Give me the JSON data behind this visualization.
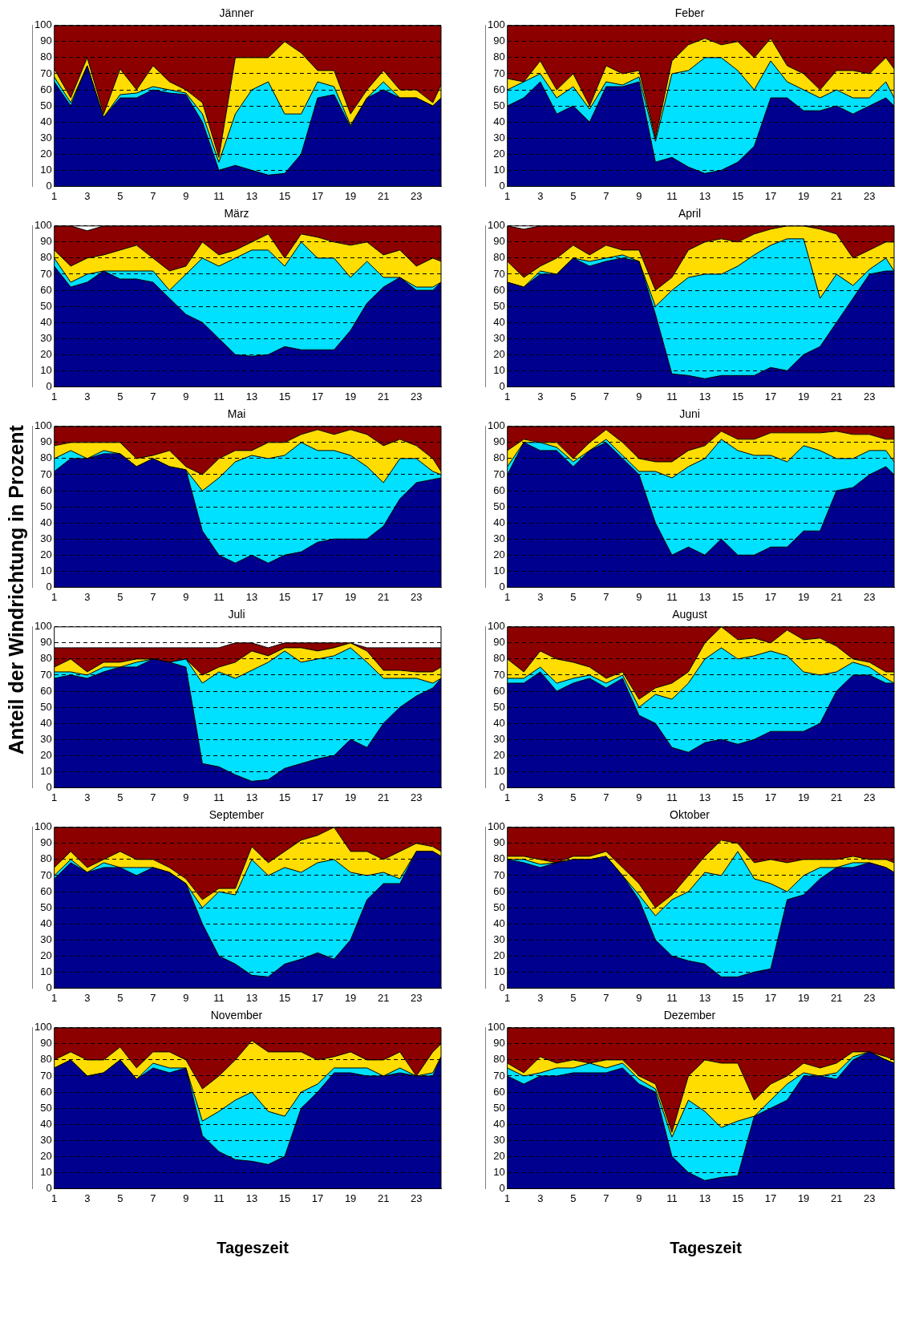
{
  "chart_data": [
    {
      "type": "area",
      "title": "Jänner",
      "stacked": true,
      "grid": "y",
      "xlim": [
        1,
        24.5
      ],
      "ylim": [
        0,
        100
      ],
      "xticks": [
        1,
        3,
        5,
        7,
        9,
        11,
        13,
        15,
        17,
        19,
        21,
        23
      ],
      "yticks": [
        0,
        10,
        20,
        30,
        40,
        50,
        60,
        70,
        80,
        90,
        100
      ],
      "x": [
        1,
        2,
        3,
        4,
        5,
        6,
        7,
        8,
        9,
        10,
        11,
        12,
        13,
        14,
        15,
        16,
        17,
        18,
        19,
        20,
        21,
        22,
        23,
        24,
        24.5
      ],
      "series": [
        {
          "color": "#00008f",
          "values": [
            65,
            50,
            75,
            43,
            55,
            55,
            60,
            58,
            57,
            40,
            10,
            13,
            10,
            7,
            8,
            20,
            55,
            57,
            37,
            55,
            60,
            55,
            55,
            50,
            55
          ]
        },
        {
          "color": "#00e0ff",
          "values": [
            3,
            2,
            0,
            0,
            2,
            3,
            2,
            2,
            1,
            5,
            5,
            32,
            50,
            58,
            37,
            25,
            10,
            5,
            1,
            0,
            5,
            0,
            0,
            0,
            0
          ]
        },
        {
          "color": "#ffdd00",
          "values": [
            5,
            3,
            5,
            2,
            16,
            2,
            13,
            5,
            2,
            7,
            3,
            35,
            20,
            15,
            45,
            38,
            7,
            10,
            7,
            5,
            7,
            5,
            5,
            2,
            8
          ]
        },
        {
          "color": "#8c0000",
          "values": [
            27,
            45,
            20,
            55,
            27,
            40,
            25,
            35,
            40,
            48,
            82,
            20,
            20,
            20,
            10,
            17,
            28,
            28,
            55,
            40,
            28,
            40,
            40,
            48,
            37
          ]
        }
      ]
    },
    {
      "type": "area",
      "title": "Feber",
      "stacked": true,
      "grid": "y",
      "xlim": [
        1,
        24.5
      ],
      "ylim": [
        0,
        100
      ],
      "xticks": [
        1,
        3,
        5,
        7,
        9,
        11,
        13,
        15,
        17,
        19,
        21,
        23
      ],
      "yticks": [
        0,
        10,
        20,
        30,
        40,
        50,
        60,
        70,
        80,
        90,
        100
      ],
      "x": [
        1,
        2,
        3,
        4,
        5,
        6,
        7,
        8,
        9,
        10,
        11,
        12,
        13,
        14,
        15,
        16,
        17,
        18,
        19,
        20,
        21,
        22,
        23,
        24,
        24.5
      ],
      "series": [
        {
          "color": "#00008f",
          "values": [
            50,
            55,
            65,
            45,
            50,
            40,
            62,
            62,
            65,
            15,
            18,
            12,
            8,
            10,
            15,
            25,
            55,
            55,
            47,
            47,
            50,
            45,
            50,
            55,
            50
          ]
        },
        {
          "color": "#00e0ff",
          "values": [
            10,
            10,
            5,
            10,
            12,
            8,
            3,
            1,
            3,
            13,
            52,
            60,
            72,
            70,
            57,
            35,
            23,
            10,
            13,
            8,
            10,
            10,
            5,
            10,
            5
          ]
        },
        {
          "color": "#ffdd00",
          "values": [
            7,
            0,
            8,
            5,
            8,
            2,
            10,
            7,
            4,
            2,
            8,
            16,
            12,
            8,
            18,
            20,
            14,
            10,
            10,
            5,
            12,
            17,
            15,
            15,
            18
          ]
        },
        {
          "color": "#8c0000",
          "values": [
            33,
            35,
            22,
            40,
            30,
            50,
            25,
            30,
            28,
            70,
            22,
            12,
            8,
            12,
            10,
            20,
            8,
            25,
            30,
            40,
            28,
            28,
            30,
            20,
            27
          ]
        }
      ]
    },
    {
      "type": "area",
      "title": "März",
      "stacked": true,
      "grid": "y",
      "xlim": [
        1,
        24.5
      ],
      "ylim": [
        0,
        100
      ],
      "xticks": [
        1,
        3,
        5,
        7,
        9,
        11,
        13,
        15,
        17,
        19,
        21,
        23
      ],
      "yticks": [
        0,
        10,
        20,
        30,
        40,
        50,
        60,
        70,
        80,
        90,
        100
      ],
      "x": [
        1,
        2,
        3,
        4,
        5,
        6,
        7,
        8,
        9,
        10,
        11,
        12,
        13,
        14,
        15,
        16,
        17,
        18,
        19,
        20,
        21,
        22,
        23,
        24,
        24.5
      ],
      "series": [
        {
          "color": "#00008f",
          "values": [
            75,
            62,
            65,
            72,
            67,
            67,
            65,
            55,
            45,
            40,
            30,
            20,
            19,
            20,
            25,
            23,
            23,
            23,
            35,
            52,
            62,
            68,
            60,
            60,
            65
          ]
        },
        {
          "color": "#00e0ff",
          "values": [
            5,
            3,
            5,
            0,
            5,
            5,
            7,
            5,
            25,
            40,
            45,
            60,
            66,
            65,
            50,
            67,
            57,
            57,
            33,
            26,
            6,
            0,
            2,
            2,
            0
          ]
        },
        {
          "color": "#ffdd00",
          "values": [
            5,
            10,
            10,
            10,
            13,
            16,
            8,
            12,
            5,
            10,
            7,
            5,
            5,
            10,
            5,
            5,
            13,
            10,
            20,
            12,
            14,
            17,
            13,
            18,
            13
          ]
        },
        {
          "color": "#8c0000",
          "values": [
            15,
            25,
            17,
            18,
            15,
            12,
            20,
            28,
            25,
            10,
            18,
            15,
            10,
            5,
            20,
            5,
            7,
            10,
            12,
            10,
            18,
            15,
            25,
            20,
            22
          ]
        }
      ]
    },
    {
      "type": "area",
      "title": "April",
      "stacked": true,
      "grid": "y",
      "xlim": [
        1,
        24.5
      ],
      "ylim": [
        0,
        100
      ],
      "xticks": [
        1,
        3,
        5,
        7,
        9,
        11,
        13,
        15,
        17,
        19,
        21,
        23
      ],
      "yticks": [
        0,
        10,
        20,
        30,
        40,
        50,
        60,
        70,
        80,
        90,
        100
      ],
      "x": [
        1,
        2,
        3,
        4,
        5,
        6,
        7,
        8,
        9,
        10,
        11,
        12,
        13,
        14,
        15,
        16,
        17,
        18,
        19,
        20,
        21,
        22,
        23,
        24,
        24.5
      ],
      "series": [
        {
          "color": "#00008f",
          "values": [
            65,
            62,
            70,
            70,
            80,
            75,
            78,
            80,
            78,
            45,
            8,
            7,
            5,
            7,
            7,
            7,
            12,
            10,
            20,
            25,
            40,
            55,
            70,
            72,
            72
          ]
        },
        {
          "color": "#00e0ff",
          "values": [
            0,
            0,
            2,
            0,
            0,
            3,
            2,
            2,
            0,
            5,
            52,
            61,
            65,
            63,
            68,
            75,
            76,
            82,
            72,
            30,
            30,
            8,
            3,
            8,
            0
          ]
        },
        {
          "color": "#ffdd00",
          "values": [
            13,
            6,
            3,
            10,
            8,
            4,
            8,
            3,
            7,
            10,
            8,
            17,
            20,
            22,
            15,
            13,
            10,
            8,
            8,
            43,
            25,
            17,
            12,
            10,
            18
          ]
        },
        {
          "color": "#8c0000",
          "values": [
            22,
            30,
            25,
            20,
            12,
            18,
            12,
            15,
            15,
            40,
            32,
            15,
            10,
            8,
            10,
            5,
            2,
            0,
            0,
            2,
            5,
            20,
            15,
            10,
            10
          ]
        }
      ]
    },
    {
      "type": "area",
      "title": "Mai",
      "ylabel": "Anteil der Windrichtung in Prozent",
      "stacked": true,
      "grid": "y",
      "xlim": [
        1,
        24.5
      ],
      "ylim": [
        0,
        100
      ],
      "xticks": [
        1,
        3,
        5,
        7,
        9,
        11,
        13,
        15,
        17,
        19,
        21,
        23
      ],
      "yticks": [
        0,
        10,
        20,
        30,
        40,
        50,
        60,
        70,
        80,
        90,
        100
      ],
      "x": [
        1,
        2,
        3,
        4,
        5,
        6,
        7,
        8,
        9,
        10,
        11,
        12,
        13,
        14,
        15,
        16,
        17,
        18,
        19,
        20,
        21,
        22,
        23,
        24,
        24.5
      ],
      "series": [
        {
          "color": "#00008f",
          "values": [
            72,
            80,
            80,
            83,
            83,
            75,
            80,
            75,
            73,
            35,
            20,
            15,
            20,
            15,
            20,
            22,
            28,
            30,
            30,
            30,
            38,
            55,
            65,
            67,
            68
          ]
        },
        {
          "color": "#00e0ff",
          "values": [
            8,
            5,
            0,
            2,
            0,
            0,
            0,
            0,
            0,
            25,
            48,
            63,
            62,
            65,
            62,
            68,
            57,
            55,
            52,
            45,
            27,
            25,
            15,
            5,
            2
          ]
        },
        {
          "color": "#ffdd00",
          "values": [
            8,
            5,
            10,
            5,
            7,
            5,
            2,
            10,
            2,
            10,
            12,
            7,
            3,
            10,
            8,
            5,
            13,
            10,
            16,
            20,
            23,
            12,
            8,
            8,
            2
          ]
        },
        {
          "color": "#8c0000",
          "values": [
            12,
            10,
            10,
            10,
            10,
            20,
            18,
            15,
            25,
            30,
            20,
            15,
            15,
            10,
            10,
            5,
            2,
            5,
            2,
            5,
            12,
            8,
            12,
            20,
            28
          ]
        }
      ]
    },
    {
      "type": "area",
      "title": "Juni",
      "stacked": true,
      "grid": "y",
      "xlim": [
        1,
        24.5
      ],
      "ylim": [
        0,
        100
      ],
      "xticks": [
        1,
        3,
        5,
        7,
        9,
        11,
        13,
        15,
        17,
        19,
        21,
        23
      ],
      "yticks": [
        0,
        10,
        20,
        30,
        40,
        50,
        60,
        70,
        80,
        90,
        100
      ],
      "x": [
        1,
        2,
        3,
        4,
        5,
        6,
        7,
        8,
        9,
        10,
        11,
        12,
        13,
        14,
        15,
        16,
        17,
        18,
        19,
        20,
        21,
        22,
        23,
        24,
        24.5
      ],
      "series": [
        {
          "color": "#00008f",
          "values": [
            70,
            90,
            85,
            85,
            75,
            85,
            90,
            80,
            70,
            40,
            20,
            25,
            20,
            30,
            20,
            20,
            25,
            25,
            35,
            35,
            60,
            62,
            70,
            75,
            70
          ]
        },
        {
          "color": "#00e0ff",
          "values": [
            5,
            0,
            5,
            2,
            3,
            0,
            2,
            2,
            2,
            32,
            48,
            50,
            60,
            62,
            65,
            62,
            57,
            53,
            53,
            50,
            20,
            18,
            15,
            10,
            8
          ]
        },
        {
          "color": "#ffdd00",
          "values": [
            10,
            2,
            0,
            3,
            2,
            5,
            6,
            8,
            8,
            6,
            10,
            10,
            8,
            5,
            7,
            10,
            14,
            18,
            8,
            11,
            17,
            15,
            10,
            7,
            14
          ]
        },
        {
          "color": "#8c0000",
          "values": [
            15,
            8,
            10,
            10,
            20,
            10,
            2,
            10,
            20,
            22,
            22,
            15,
            12,
            3,
            8,
            8,
            4,
            4,
            4,
            4,
            3,
            5,
            5,
            8,
            8
          ]
        }
      ]
    },
    {
      "type": "area",
      "title": "Juli",
      "stacked": true,
      "grid": "y",
      "xlim": [
        1,
        24.5
      ],
      "ylim": [
        0,
        100
      ],
      "xticks": [
        1,
        3,
        5,
        7,
        9,
        11,
        13,
        15,
        17,
        19,
        21,
        23
      ],
      "yticks": [
        0,
        10,
        20,
        30,
        40,
        50,
        60,
        70,
        80,
        90,
        100
      ],
      "x": [
        1,
        2,
        3,
        4,
        5,
        6,
        7,
        8,
        9,
        10,
        11,
        12,
        13,
        14,
        15,
        16,
        17,
        18,
        19,
        20,
        21,
        22,
        23,
        24,
        24.5
      ],
      "series": [
        {
          "color": "#00008f",
          "values": [
            68,
            70,
            68,
            72,
            75,
            75,
            80,
            78,
            75,
            15,
            13,
            8,
            4,
            5,
            12,
            15,
            18,
            20,
            30,
            25,
            40,
            50,
            57,
            62,
            68
          ]
        },
        {
          "color": "#00e0ff",
          "values": [
            4,
            2,
            2,
            3,
            0,
            3,
            0,
            0,
            5,
            50,
            59,
            60,
            69,
            73,
            73,
            63,
            62,
            62,
            57,
            53,
            28,
            18,
            11,
            3,
            0
          ]
        },
        {
          "color": "#ffdd00",
          "values": [
            3,
            8,
            2,
            3,
            3,
            2,
            0,
            0,
            0,
            5,
            3,
            10,
            12,
            4,
            2,
            9,
            5,
            5,
            3,
            7,
            5,
            5,
            4,
            7,
            7
          ]
        },
        {
          "color": "#8c0000",
          "values": [
            12,
            7,
            15,
            9,
            9,
            7,
            7,
            9,
            7,
            17,
            12,
            12,
            5,
            5,
            3,
            3,
            5,
            3,
            0,
            2,
            14,
            14,
            15,
            15,
            12
          ]
        }
      ]
    },
    {
      "type": "area",
      "title": "August",
      "stacked": true,
      "grid": "y",
      "xlim": [
        1,
        24.5
      ],
      "ylim": [
        0,
        100
      ],
      "xticks": [
        1,
        3,
        5,
        7,
        9,
        11,
        13,
        15,
        17,
        19,
        21,
        23
      ],
      "yticks": [
        0,
        10,
        20,
        30,
        40,
        50,
        60,
        70,
        80,
        90,
        100
      ],
      "x": [
        1,
        2,
        3,
        4,
        5,
        6,
        7,
        8,
        9,
        10,
        11,
        12,
        13,
        14,
        15,
        16,
        17,
        18,
        19,
        20,
        21,
        22,
        23,
        24,
        24.5
      ],
      "series": [
        {
          "color": "#00008f",
          "values": [
            65,
            65,
            72,
            60,
            65,
            68,
            62,
            68,
            45,
            40,
            25,
            22,
            28,
            30,
            27,
            30,
            35,
            35,
            35,
            40,
            60,
            70,
            70,
            65,
            65
          ]
        },
        {
          "color": "#00e0ff",
          "values": [
            3,
            3,
            3,
            5,
            3,
            2,
            3,
            2,
            5,
            18,
            30,
            43,
            52,
            57,
            53,
            52,
            50,
            47,
            37,
            30,
            12,
            8,
            5,
            3,
            0
          ]
        },
        {
          "color": "#ffdd00",
          "values": [
            12,
            4,
            10,
            15,
            10,
            5,
            3,
            2,
            5,
            4,
            10,
            7,
            10,
            13,
            12,
            11,
            5,
            16,
            20,
            23,
            16,
            2,
            3,
            4,
            7
          ]
        },
        {
          "color": "#8c0000",
          "values": [
            20,
            28,
            15,
            20,
            22,
            25,
            32,
            28,
            45,
            38,
            35,
            28,
            10,
            0,
            8,
            7,
            10,
            2,
            8,
            7,
            12,
            20,
            22,
            28,
            28
          ]
        }
      ]
    },
    {
      "type": "area",
      "title": "September",
      "stacked": true,
      "grid": "y",
      "xlim": [
        1,
        24.5
      ],
      "ylim": [
        0,
        100
      ],
      "xticks": [
        1,
        3,
        5,
        7,
        9,
        11,
        13,
        15,
        17,
        19,
        21,
        23
      ],
      "yticks": [
        0,
        10,
        20,
        30,
        40,
        50,
        60,
        70,
        80,
        90,
        100
      ],
      "x": [
        1,
        2,
        3,
        4,
        5,
        6,
        7,
        8,
        9,
        10,
        11,
        12,
        13,
        14,
        15,
        16,
        17,
        18,
        19,
        20,
        21,
        22,
        23,
        24,
        24.5
      ],
      "series": [
        {
          "color": "#00008f",
          "values": [
            68,
            78,
            72,
            75,
            75,
            70,
            75,
            72,
            65,
            40,
            20,
            15,
            8,
            7,
            15,
            18,
            22,
            18,
            30,
            55,
            65,
            65,
            85,
            85,
            82
          ]
        },
        {
          "color": "#00e0ff",
          "values": [
            2,
            2,
            0,
            3,
            0,
            5,
            0,
            0,
            0,
            10,
            40,
            43,
            72,
            63,
            60,
            54,
            56,
            62,
            42,
            15,
            7,
            3,
            0,
            0,
            0
          ]
        },
        {
          "color": "#ffdd00",
          "values": [
            5,
            5,
            3,
            2,
            10,
            5,
            5,
            3,
            3,
            5,
            2,
            4,
            8,
            8,
            10,
            20,
            17,
            20,
            13,
            15,
            8,
            17,
            5,
            3,
            3
          ]
        },
        {
          "color": "#8c0000",
          "values": [
            25,
            15,
            25,
            20,
            15,
            20,
            20,
            25,
            32,
            45,
            38,
            38,
            12,
            22,
            15,
            8,
            5,
            0,
            15,
            15,
            20,
            15,
            10,
            12,
            15
          ]
        }
      ]
    },
    {
      "type": "area",
      "title": "Oktober",
      "stacked": true,
      "grid": "y",
      "xlim": [
        1,
        24.5
      ],
      "ylim": [
        0,
        100
      ],
      "xticks": [
        1,
        3,
        5,
        7,
        9,
        11,
        13,
        15,
        17,
        19,
        21,
        23
      ],
      "yticks": [
        0,
        10,
        20,
        30,
        40,
        50,
        60,
        70,
        80,
        90,
        100
      ],
      "x": [
        1,
        2,
        3,
        4,
        5,
        6,
        7,
        8,
        9,
        10,
        11,
        12,
        13,
        14,
        15,
        16,
        17,
        18,
        19,
        20,
        21,
        22,
        23,
        24,
        24.5
      ],
      "series": [
        {
          "color": "#00008f",
          "values": [
            80,
            78,
            75,
            78,
            80,
            80,
            82,
            70,
            55,
            30,
            20,
            17,
            15,
            7,
            7,
            10,
            12,
            55,
            58,
            68,
            75,
            75,
            78,
            75,
            72
          ]
        },
        {
          "color": "#00e0ff",
          "values": [
            0,
            2,
            2,
            0,
            0,
            0,
            0,
            0,
            3,
            15,
            35,
            43,
            57,
            63,
            78,
            58,
            53,
            5,
            12,
            7,
            0,
            3,
            0,
            0,
            0
          ]
        },
        {
          "color": "#ffdd00",
          "values": [
            2,
            2,
            3,
            0,
            2,
            2,
            3,
            5,
            7,
            5,
            3,
            10,
            10,
            22,
            5,
            10,
            15,
            18,
            10,
            5,
            5,
            4,
            2,
            5,
            6
          ]
        },
        {
          "color": "#8c0000",
          "values": [
            18,
            18,
            20,
            22,
            18,
            18,
            15,
            25,
            35,
            50,
            42,
            30,
            18,
            8,
            10,
            22,
            20,
            22,
            20,
            20,
            20,
            18,
            20,
            20,
            22
          ]
        }
      ]
    },
    {
      "type": "area",
      "title": "November",
      "xlabel": "Tageszeit",
      "stacked": true,
      "grid": "y",
      "xlim": [
        1,
        24.5
      ],
      "ylim": [
        0,
        100
      ],
      "xticks": [
        1,
        3,
        5,
        7,
        9,
        11,
        13,
        15,
        17,
        19,
        21,
        23
      ],
      "yticks": [
        0,
        10,
        20,
        30,
        40,
        50,
        60,
        70,
        80,
        90,
        100
      ],
      "x": [
        1,
        2,
        3,
        4,
        5,
        6,
        7,
        8,
        9,
        10,
        11,
        12,
        13,
        14,
        15,
        16,
        17,
        18,
        19,
        20,
        21,
        22,
        23,
        24,
        24.5
      ],
      "series": [
        {
          "color": "#00008f",
          "values": [
            75,
            80,
            70,
            72,
            80,
            68,
            75,
            72,
            75,
            33,
            23,
            18,
            17,
            15,
            20,
            50,
            60,
            72,
            72,
            70,
            70,
            72,
            70,
            70,
            82
          ]
        },
        {
          "color": "#00e0ff",
          "values": [
            0,
            0,
            0,
            0,
            0,
            0,
            3,
            3,
            0,
            9,
            25,
            37,
            43,
            33,
            25,
            10,
            5,
            3,
            3,
            5,
            0,
            3,
            0,
            2,
            0
          ]
        },
        {
          "color": "#ffdd00",
          "values": [
            5,
            5,
            10,
            8,
            8,
            7,
            7,
            10,
            5,
            20,
            22,
            25,
            32,
            37,
            40,
            25,
            15,
            7,
            10,
            5,
            10,
            10,
            0,
            13,
            8
          ]
        },
        {
          "color": "#8c0000",
          "values": [
            20,
            15,
            20,
            20,
            12,
            25,
            15,
            15,
            20,
            38,
            30,
            20,
            8,
            15,
            15,
            15,
            20,
            18,
            15,
            20,
            20,
            15,
            30,
            15,
            10
          ]
        }
      ]
    },
    {
      "type": "area",
      "title": "Dezember",
      "xlabel": "Tageszeit",
      "stacked": true,
      "grid": "y",
      "xlim": [
        1,
        24.5
      ],
      "ylim": [
        0,
        100
      ],
      "xticks": [
        1,
        3,
        5,
        7,
        9,
        11,
        13,
        15,
        17,
        19,
        21,
        23
      ],
      "yticks": [
        0,
        10,
        20,
        30,
        40,
        50,
        60,
        70,
        80,
        90,
        100
      ],
      "x": [
        1,
        2,
        3,
        4,
        5,
        6,
        7,
        8,
        9,
        10,
        11,
        12,
        13,
        14,
        15,
        16,
        17,
        18,
        19,
        20,
        21,
        22,
        23,
        24,
        24.5
      ],
      "series": [
        {
          "color": "#00008f",
          "values": [
            70,
            65,
            70,
            70,
            72,
            72,
            72,
            75,
            65,
            60,
            20,
            10,
            5,
            7,
            8,
            45,
            50,
            55,
            70,
            70,
            68,
            80,
            85,
            80,
            78
          ]
        },
        {
          "color": "#00e0ff",
          "values": [
            5,
            5,
            2,
            5,
            3,
            6,
            3,
            3,
            3,
            2,
            12,
            45,
            43,
            31,
            34,
            0,
            5,
            10,
            2,
            0,
            4,
            2,
            0,
            0,
            0
          ]
        },
        {
          "color": "#ffdd00",
          "values": [
            3,
            2,
            10,
            3,
            5,
            0,
            5,
            2,
            2,
            3,
            3,
            15,
            32,
            40,
            36,
            10,
            10,
            5,
            6,
            5,
            6,
            3,
            0,
            2,
            2
          ]
        },
        {
          "color": "#8c0000",
          "values": [
            22,
            28,
            18,
            22,
            20,
            22,
            20,
            20,
            30,
            35,
            65,
            30,
            20,
            22,
            22,
            45,
            35,
            30,
            22,
            25,
            22,
            15,
            15,
            18,
            20
          ]
        }
      ]
    }
  ]
}
